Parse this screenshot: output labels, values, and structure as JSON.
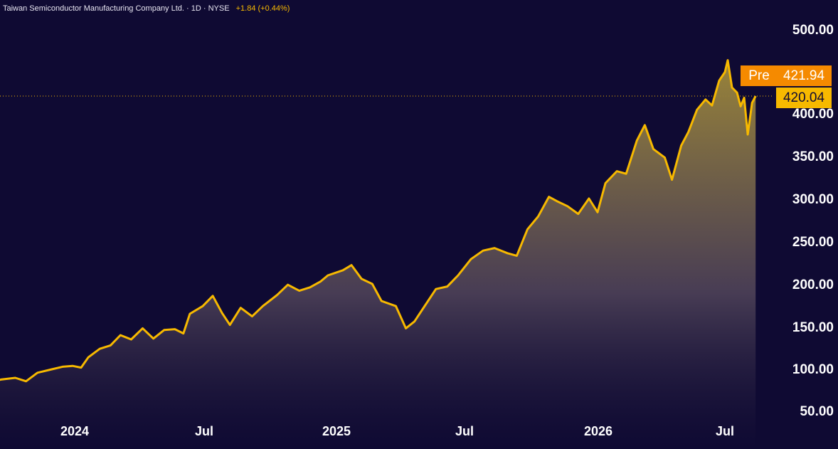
{
  "header": {
    "title": "Taiwan Semiconductor Manufacturing Company Ltd. · 1D · NYSE",
    "change": "+1.84 (+0.44%)"
  },
  "colors": {
    "background": "#0f0a33",
    "line": "#f7b900",
    "pre_badge": "#f58a00",
    "last_badge": "#f7b900"
  },
  "price_tags": {
    "pre_label": "Pre",
    "pre_value": "421.94",
    "last_value": "420.04"
  },
  "chart_data": {
    "type": "area",
    "title": "",
    "xlabel": "",
    "ylabel": "",
    "y_ticks": [
      "500.00",
      "400.00",
      "350.00",
      "300.00",
      "250.00",
      "200.00",
      "150.00",
      "100.00",
      "50.00"
    ],
    "x_ticks": [
      "2024",
      "Jul",
      "2025",
      "Jul",
      "2026",
      "Jul"
    ],
    "ylim": [
      40,
      510
    ],
    "grid": false,
    "series": [
      {
        "values": [
          {
            "x": "2023-09-01",
            "y": 84
          },
          {
            "x": "2023-09-20",
            "y": 88
          },
          {
            "x": "2023-10-10",
            "y": 90
          },
          {
            "x": "2023-10-25",
            "y": 86
          },
          {
            "x": "2023-11-10",
            "y": 96
          },
          {
            "x": "2023-11-30",
            "y": 100
          },
          {
            "x": "2023-12-15",
            "y": 103
          },
          {
            "x": "2023-12-29",
            "y": 104
          },
          {
            "x": "2024-01-10",
            "y": 102
          },
          {
            "x": "2024-01-20",
            "y": 114
          },
          {
            "x": "2024-02-05",
            "y": 124
          },
          {
            "x": "2024-02-20",
            "y": 128
          },
          {
            "x": "2024-03-05",
            "y": 140
          },
          {
            "x": "2024-03-20",
            "y": 135
          },
          {
            "x": "2024-04-05",
            "y": 148
          },
          {
            "x": "2024-04-20",
            "y": 136
          },
          {
            "x": "2024-05-05",
            "y": 146
          },
          {
            "x": "2024-05-20",
            "y": 147
          },
          {
            "x": "2024-06-01",
            "y": 142
          },
          {
            "x": "2024-06-10",
            "y": 165
          },
          {
            "x": "2024-06-28",
            "y": 174
          },
          {
            "x": "2024-07-12",
            "y": 186
          },
          {
            "x": "2024-07-25",
            "y": 166
          },
          {
            "x": "2024-08-05",
            "y": 152
          },
          {
            "x": "2024-08-20",
            "y": 172
          },
          {
            "x": "2024-09-05",
            "y": 162
          },
          {
            "x": "2024-09-20",
            "y": 174
          },
          {
            "x": "2024-10-10",
            "y": 187
          },
          {
            "x": "2024-10-25",
            "y": 199
          },
          {
            "x": "2024-11-10",
            "y": 192
          },
          {
            "x": "2024-11-25",
            "y": 196
          },
          {
            "x": "2024-12-10",
            "y": 203
          },
          {
            "x": "2024-12-20",
            "y": 210
          },
          {
            "x": "2025-01-10",
            "y": 216
          },
          {
            "x": "2025-01-22",
            "y": 222
          },
          {
            "x": "2025-02-05",
            "y": 206
          },
          {
            "x": "2025-02-20",
            "y": 200
          },
          {
            "x": "2025-03-05",
            "y": 180
          },
          {
            "x": "2025-03-25",
            "y": 174
          },
          {
            "x": "2025-04-08",
            "y": 148
          },
          {
            "x": "2025-04-20",
            "y": 156
          },
          {
            "x": "2025-05-05",
            "y": 175
          },
          {
            "x": "2025-05-20",
            "y": 194
          },
          {
            "x": "2025-06-05",
            "y": 197
          },
          {
            "x": "2025-06-20",
            "y": 210
          },
          {
            "x": "2025-07-08",
            "y": 229
          },
          {
            "x": "2025-07-25",
            "y": 239
          },
          {
            "x": "2025-08-10",
            "y": 242
          },
          {
            "x": "2025-08-28",
            "y": 236
          },
          {
            "x": "2025-09-10",
            "y": 233
          },
          {
            "x": "2025-09-25",
            "y": 264
          },
          {
            "x": "2025-10-10",
            "y": 279
          },
          {
            "x": "2025-10-25",
            "y": 302
          },
          {
            "x": "2025-11-05",
            "y": 297
          },
          {
            "x": "2025-11-20",
            "y": 291
          },
          {
            "x": "2025-12-05",
            "y": 282
          },
          {
            "x": "2025-12-20",
            "y": 300
          },
          {
            "x": "2026-01-01",
            "y": 284
          },
          {
            "x": "2026-01-12",
            "y": 318
          },
          {
            "x": "2026-01-28",
            "y": 332
          },
          {
            "x": "2026-02-10",
            "y": 329
          },
          {
            "x": "2026-02-25",
            "y": 368
          },
          {
            "x": "2026-03-08",
            "y": 386
          },
          {
            "x": "2026-03-20",
            "y": 358
          },
          {
            "x": "2026-04-05",
            "y": 348
          },
          {
            "x": "2026-04-15",
            "y": 322
          },
          {
            "x": "2026-04-28",
            "y": 362
          },
          {
            "x": "2026-05-08",
            "y": 378
          },
          {
            "x": "2026-05-20",
            "y": 404
          },
          {
            "x": "2026-06-01",
            "y": 416
          },
          {
            "x": "2026-06-10",
            "y": 409
          },
          {
            "x": "2026-06-20",
            "y": 438
          },
          {
            "x": "2026-06-28",
            "y": 448
          },
          {
            "x": "2026-07-02",
            "y": 462
          },
          {
            "x": "2026-07-08",
            "y": 430
          },
          {
            "x": "2026-07-15",
            "y": 424
          },
          {
            "x": "2026-07-20",
            "y": 408
          },
          {
            "x": "2026-07-25",
            "y": 418
          },
          {
            "x": "2026-07-30",
            "y": 375
          },
          {
            "x": "2026-08-05",
            "y": 412
          },
          {
            "x": "2026-08-10",
            "y": 420
          }
        ]
      }
    ]
  }
}
